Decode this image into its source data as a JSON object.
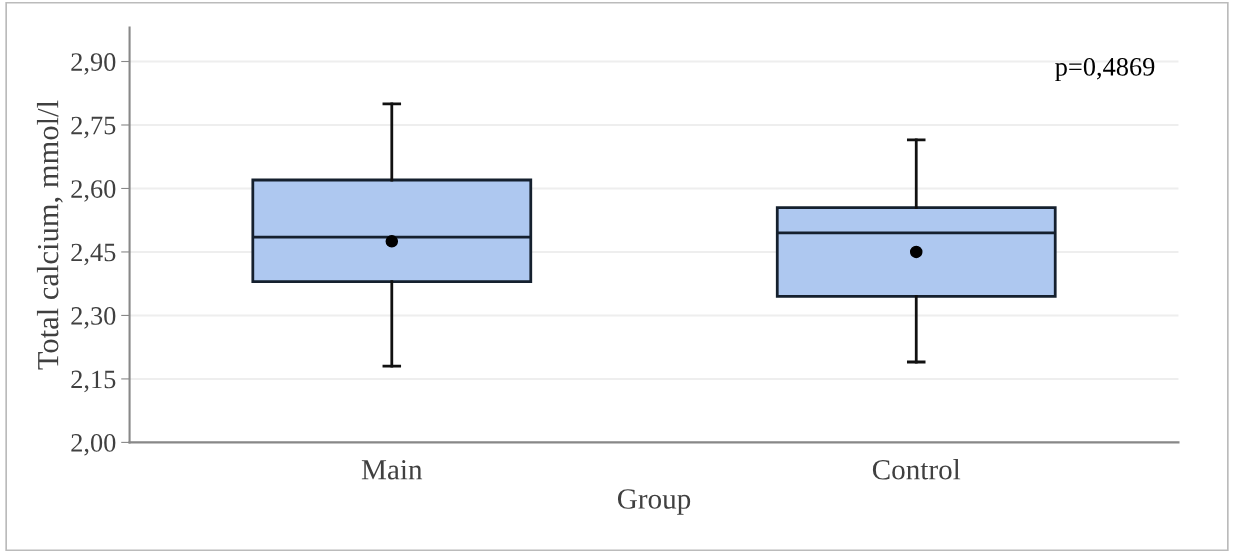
{
  "chart_data": {
    "type": "box",
    "xlabel": "Group",
    "ylabel": "Total calcium, mmol/l",
    "categories": [
      "Main",
      "Control"
    ],
    "boxes": [
      {
        "low": 2.18,
        "q1": 2.38,
        "median": 2.485,
        "q3": 2.62,
        "high": 2.8,
        "mean": 2.475
      },
      {
        "low": 2.19,
        "q1": 2.345,
        "median": 2.495,
        "q3": 2.555,
        "high": 2.715,
        "mean": 2.45
      }
    ],
    "color": "#aec8f0",
    "ylim": [
      2.0,
      2.98
    ],
    "yticks": [
      {
        "value": 2.0,
        "label": "2,00"
      },
      {
        "value": 2.15,
        "label": "2,15"
      },
      {
        "value": 2.3,
        "label": "2,30"
      },
      {
        "value": 2.45,
        "label": "2,45"
      },
      {
        "value": 2.6,
        "label": "2,60"
      },
      {
        "value": 2.75,
        "label": "2,75"
      },
      {
        "value": 2.9,
        "label": "2,90"
      }
    ],
    "grid": "y",
    "annotations": [
      "p=0,4869"
    ]
  }
}
